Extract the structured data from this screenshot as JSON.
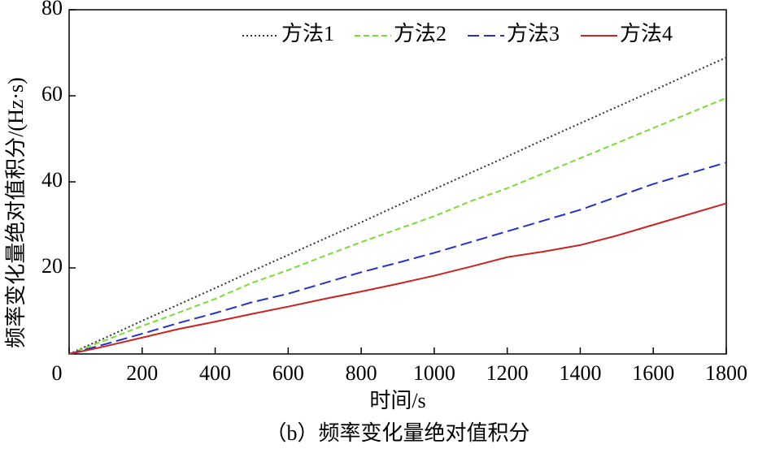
{
  "chart_data": {
    "type": "line",
    "subtitle": "（b）频率变化量绝对值积分",
    "x_label": "时间/s",
    "y_label": "频率变化量绝对值积分/(Hz·s)",
    "x": [
      0,
      100,
      200,
      300,
      400,
      500,
      600,
      700,
      800,
      900,
      1000,
      1100,
      1200,
      1300,
      1400,
      1500,
      1600,
      1700,
      1800
    ],
    "series": [
      {
        "name": "方法1",
        "color": "#333333",
        "dash": "2,3",
        "values": [
          0,
          3.8,
          7.7,
          11.5,
          15.3,
          19.2,
          23,
          26.8,
          30.6,
          34.5,
          38.3,
          42.1,
          45.9,
          49.8,
          53.6,
          57.4,
          61.2,
          65.1,
          68.9
        ]
      },
      {
        "name": "方法2",
        "color": "#77dd33",
        "dash": "7,4",
        "values": [
          0,
          3.2,
          6.5,
          9.6,
          12.8,
          16.5,
          19.5,
          22.8,
          26,
          29,
          32,
          35.5,
          38.5,
          42,
          45.5,
          49,
          52.5,
          56,
          59.5
        ]
      },
      {
        "name": "方法3",
        "color": "#2233cc",
        "dash": "14,6",
        "values": [
          0,
          2.3,
          4.7,
          7.2,
          9.5,
          12,
          14,
          16.5,
          19,
          21.2,
          23.5,
          26,
          28.5,
          31,
          33.5,
          36.5,
          39.5,
          42,
          44.5
        ]
      },
      {
        "name": "方法4",
        "color": "#cc2222",
        "dash": "none",
        "values": [
          0,
          1.8,
          3.8,
          5.8,
          7.5,
          9.3,
          11,
          12.8,
          14.5,
          16.3,
          18.2,
          20.3,
          22.5,
          23.8,
          25.3,
          27.5,
          30,
          32.5,
          35
        ]
      }
    ],
    "xlim": [
      0,
      1800
    ],
    "xticks": [
      0,
      200,
      400,
      600,
      800,
      1000,
      1200,
      1400,
      1600,
      1800
    ],
    "ylim": [
      0,
      80
    ],
    "yticks": [
      20,
      40,
      60,
      80
    ],
    "legend": "upper right"
  }
}
